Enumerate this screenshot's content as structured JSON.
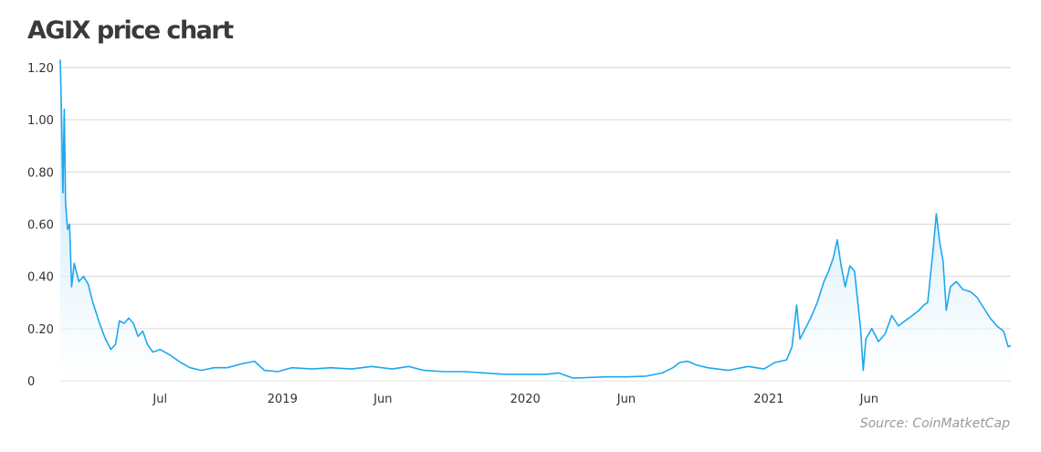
{
  "title": "AGIX price chart",
  "source": "Source:  CoinMatketCap",
  "chart_data": {
    "type": "area",
    "title": "AGIX price chart",
    "xlabel": "",
    "ylabel": "",
    "ylim": [
      0,
      1.2
    ],
    "xlim": [
      "2018-02-01",
      "2021-12-31"
    ],
    "grid": true,
    "colors": {
      "line": "#1ea7f0",
      "fill_top": "#a9dcf6",
      "fill_bottom": "#ffffff",
      "grid": "#d6d6d6"
    },
    "y_ticks": [
      {
        "value": 0,
        "label": "0"
      },
      {
        "value": 0.2,
        "label": "0.20"
      },
      {
        "value": 0.4,
        "label": "0.40"
      },
      {
        "value": 0.6,
        "label": "0.60"
      },
      {
        "value": 0.8,
        "label": "0.80"
      },
      {
        "value": 1.0,
        "label": "1.00"
      },
      {
        "value": 1.2,
        "label": "1.20"
      }
    ],
    "x_ticks": [
      {
        "date": "2018-07-01",
        "label": "Jul"
      },
      {
        "date": "2019-01-01",
        "label": "2019"
      },
      {
        "date": "2019-06-01",
        "label": "Jun"
      },
      {
        "date": "2020-01-01",
        "label": "2020"
      },
      {
        "date": "2020-06-01",
        "label": "Jun"
      },
      {
        "date": "2021-01-01",
        "label": "2021"
      },
      {
        "date": "2021-06-01",
        "label": "Jun"
      }
    ],
    "series": [
      {
        "name": "",
        "points": [
          [
            "2018-02-01",
            1.23
          ],
          [
            "2018-02-03",
            1.0
          ],
          [
            "2018-02-05",
            0.72
          ],
          [
            "2018-02-07",
            1.04
          ],
          [
            "2018-02-09",
            0.68
          ],
          [
            "2018-02-12",
            0.58
          ],
          [
            "2018-02-15",
            0.6
          ],
          [
            "2018-02-18",
            0.36
          ],
          [
            "2018-02-22",
            0.45
          ],
          [
            "2018-03-01",
            0.38
          ],
          [
            "2018-03-08",
            0.4
          ],
          [
            "2018-03-15",
            0.37
          ],
          [
            "2018-03-22",
            0.3
          ],
          [
            "2018-04-01",
            0.22
          ],
          [
            "2018-04-10",
            0.16
          ],
          [
            "2018-04-18",
            0.12
          ],
          [
            "2018-04-25",
            0.14
          ],
          [
            "2018-05-01",
            0.23
          ],
          [
            "2018-05-08",
            0.22
          ],
          [
            "2018-05-15",
            0.24
          ],
          [
            "2018-05-22",
            0.22
          ],
          [
            "2018-05-29",
            0.17
          ],
          [
            "2018-06-05",
            0.19
          ],
          [
            "2018-06-12",
            0.14
          ],
          [
            "2018-06-20",
            0.11
          ],
          [
            "2018-07-01",
            0.12
          ],
          [
            "2018-07-15",
            0.1
          ],
          [
            "2018-08-01",
            0.07
          ],
          [
            "2018-08-15",
            0.05
          ],
          [
            "2018-09-01",
            0.04
          ],
          [
            "2018-09-20",
            0.05
          ],
          [
            "2018-10-10",
            0.05
          ],
          [
            "2018-11-01",
            0.065
          ],
          [
            "2018-11-20",
            0.075
          ],
          [
            "2018-12-05",
            0.04
          ],
          [
            "2018-12-25",
            0.035
          ],
          [
            "2019-01-15",
            0.05
          ],
          [
            "2019-02-15",
            0.045
          ],
          [
            "2019-03-15",
            0.05
          ],
          [
            "2019-04-15",
            0.045
          ],
          [
            "2019-05-15",
            0.055
          ],
          [
            "2019-06-15",
            0.045
          ],
          [
            "2019-07-10",
            0.055
          ],
          [
            "2019-08-01",
            0.04
          ],
          [
            "2019-09-01",
            0.035
          ],
          [
            "2019-10-01",
            0.035
          ],
          [
            "2019-11-01",
            0.03
          ],
          [
            "2019-12-01",
            0.025
          ],
          [
            "2020-01-01",
            0.025
          ],
          [
            "2020-02-01",
            0.025
          ],
          [
            "2020-02-20",
            0.03
          ],
          [
            "2020-03-13",
            0.01
          ],
          [
            "2020-04-01",
            0.012
          ],
          [
            "2020-05-01",
            0.015
          ],
          [
            "2020-06-01",
            0.015
          ],
          [
            "2020-07-01",
            0.018
          ],
          [
            "2020-07-25",
            0.03
          ],
          [
            "2020-08-10",
            0.05
          ],
          [
            "2020-08-20",
            0.07
          ],
          [
            "2020-09-01",
            0.075
          ],
          [
            "2020-09-15",
            0.06
          ],
          [
            "2020-10-01",
            0.05
          ],
          [
            "2020-11-01",
            0.04
          ],
          [
            "2020-12-01",
            0.055
          ],
          [
            "2020-12-25",
            0.045
          ],
          [
            "2021-01-10",
            0.07
          ],
          [
            "2021-01-28",
            0.08
          ],
          [
            "2021-02-05",
            0.13
          ],
          [
            "2021-02-12",
            0.29
          ],
          [
            "2021-02-17",
            0.16
          ],
          [
            "2021-02-25",
            0.2
          ],
          [
            "2021-03-05",
            0.24
          ],
          [
            "2021-03-15",
            0.3
          ],
          [
            "2021-03-25",
            0.38
          ],
          [
            "2021-04-01",
            0.42
          ],
          [
            "2021-04-08",
            0.47
          ],
          [
            "2021-04-14",
            0.54
          ],
          [
            "2021-04-20",
            0.44
          ],
          [
            "2021-04-26",
            0.36
          ],
          [
            "2021-05-03",
            0.44
          ],
          [
            "2021-05-10",
            0.42
          ],
          [
            "2021-05-15",
            0.3
          ],
          [
            "2021-05-19",
            0.2
          ],
          [
            "2021-05-23",
            0.04
          ],
          [
            "2021-05-27",
            0.16
          ],
          [
            "2021-06-05",
            0.2
          ],
          [
            "2021-06-15",
            0.15
          ],
          [
            "2021-06-25",
            0.18
          ],
          [
            "2021-07-05",
            0.25
          ],
          [
            "2021-07-15",
            0.21
          ],
          [
            "2021-07-25",
            0.23
          ],
          [
            "2021-08-05",
            0.25
          ],
          [
            "2021-08-15",
            0.27
          ],
          [
            "2021-08-22",
            0.29
          ],
          [
            "2021-08-28",
            0.3
          ],
          [
            "2021-09-05",
            0.5
          ],
          [
            "2021-09-10",
            0.64
          ],
          [
            "2021-09-15",
            0.53
          ],
          [
            "2021-09-20",
            0.46
          ],
          [
            "2021-09-25",
            0.27
          ],
          [
            "2021-10-01",
            0.36
          ],
          [
            "2021-10-10",
            0.38
          ],
          [
            "2021-10-20",
            0.35
          ],
          [
            "2021-11-01",
            0.34
          ],
          [
            "2021-11-10",
            0.32
          ],
          [
            "2021-11-20",
            0.28
          ],
          [
            "2021-11-30",
            0.24
          ],
          [
            "2021-12-10",
            0.21
          ],
          [
            "2021-12-20",
            0.19
          ],
          [
            "2021-12-27",
            0.13
          ],
          [
            "2021-12-31",
            0.135
          ]
        ]
      }
    ]
  }
}
